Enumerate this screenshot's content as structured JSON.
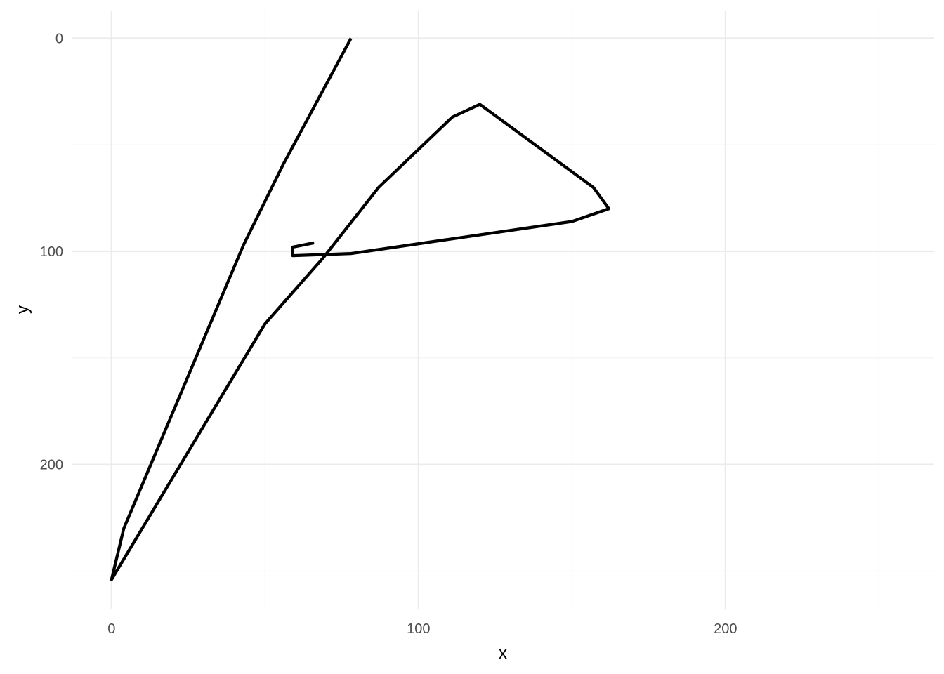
{
  "chart_data": {
    "type": "line",
    "title": "",
    "xlabel": "x",
    "ylabel": "y",
    "xlim": [
      -13,
      268
    ],
    "ylim": [
      -13,
      268
    ],
    "y_reversed": true,
    "grid": true,
    "x_ticks": [
      0,
      100,
      200
    ],
    "y_ticks": [
      0,
      100,
      200
    ],
    "series": [
      {
        "color": "#000000",
        "points": [
          [
            78,
            0
          ],
          [
            56,
            59
          ],
          [
            43,
            97
          ],
          [
            4,
            230
          ],
          [
            0,
            254
          ],
          [
            50,
            134
          ],
          [
            69,
            103
          ],
          [
            87,
            70
          ],
          [
            111,
            37
          ],
          [
            120,
            31
          ],
          [
            157,
            70
          ],
          [
            162,
            80
          ],
          [
            150,
            86
          ],
          [
            78,
            101
          ],
          [
            59,
            102
          ],
          [
            59,
            98
          ],
          [
            66,
            96
          ]
        ]
      }
    ]
  }
}
